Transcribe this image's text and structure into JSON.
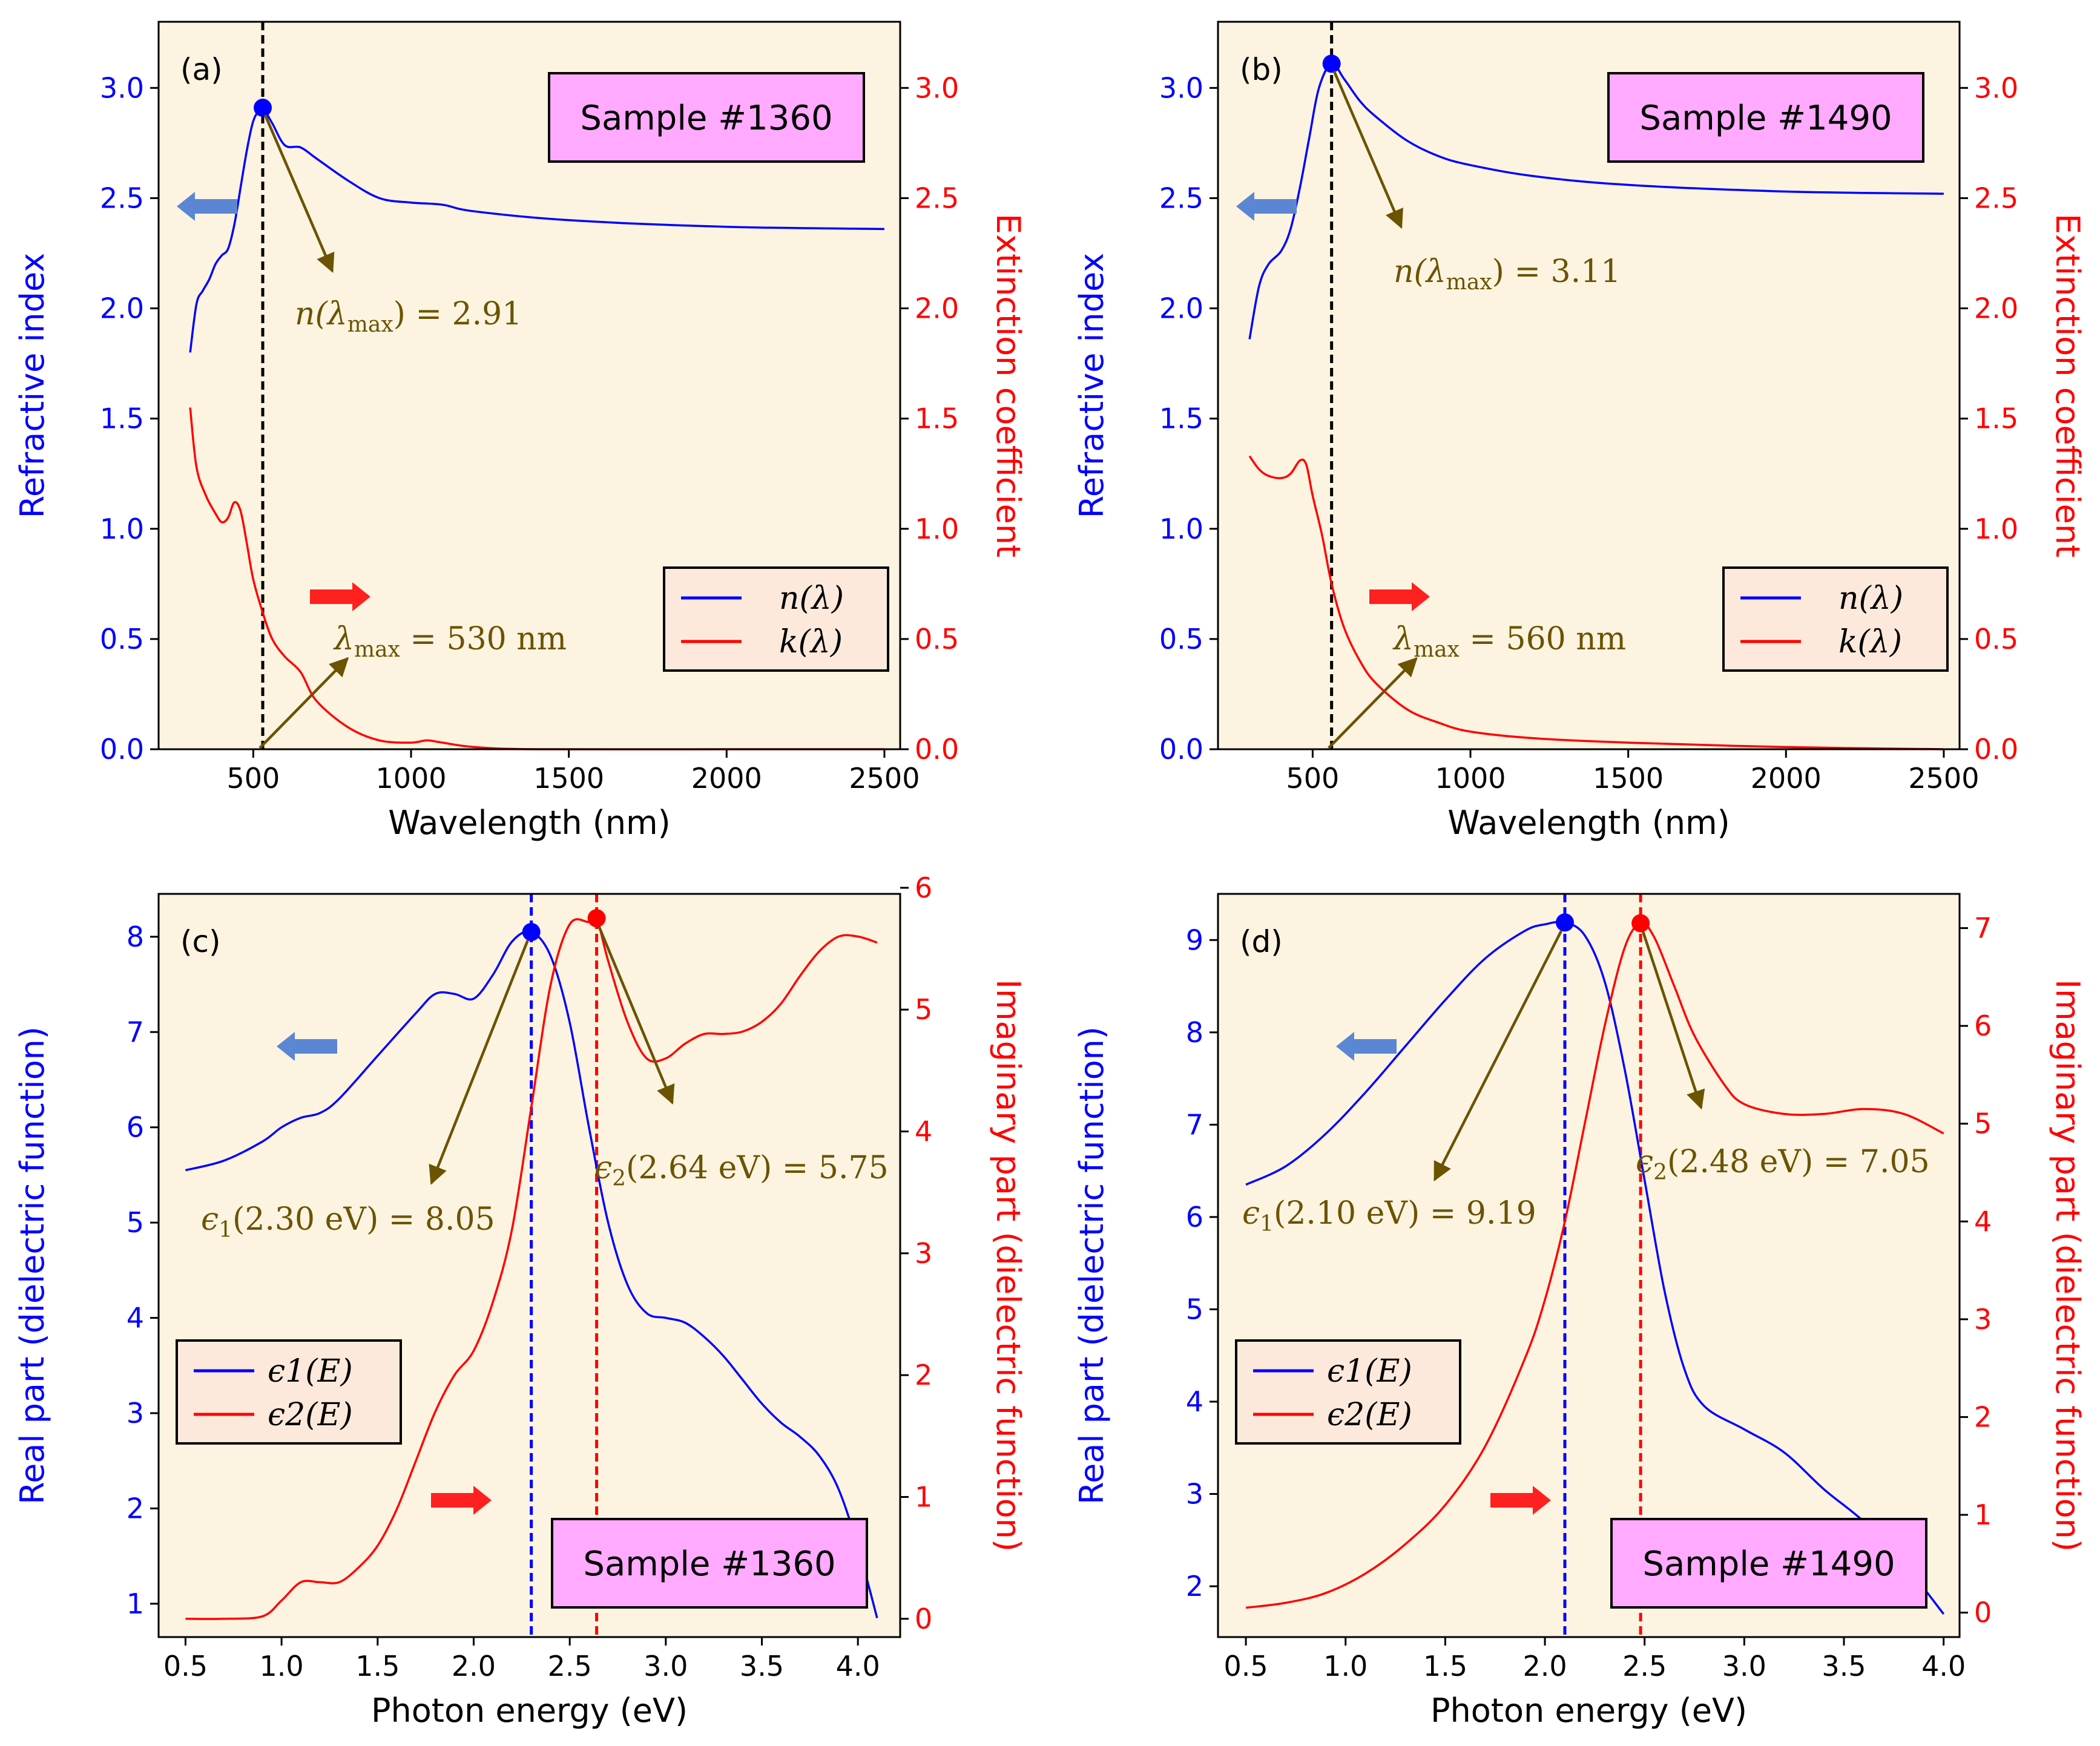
{
  "colors": {
    "panel_bg": "#fcf4e0",
    "blue": "#0000ff",
    "red": "#ff0000",
    "annotation": "#6b5300",
    "sample_box": "#ffaaff",
    "legend_bg": "#fde9dc",
    "arrow_blue": "#5b86d4",
    "arrow_red": "#ff2020"
  },
  "chart_data": [
    {
      "panel": "a",
      "label": "(a)",
      "type": "line",
      "sample": "Sample #1360",
      "xlabel": "Wavelength (nm)",
      "ylabel_left": "Refractive index",
      "ylabel_right": "Extinction coefficient",
      "xlim": [
        200,
        2550
      ],
      "ylim_left": [
        0,
        3.3
      ],
      "ylim_right": [
        0,
        3.3
      ],
      "xticks": [
        500,
        1000,
        1500,
        2000,
        2500
      ],
      "yticks_left": [
        0.0,
        0.5,
        1.0,
        1.5,
        2.0,
        2.5,
        3.0
      ],
      "yticks_right": [
        0.0,
        0.5,
        1.0,
        1.5,
        2.0,
        2.5,
        3.0
      ],
      "vline": {
        "x": 530,
        "color": "black"
      },
      "marker": {
        "x": 530,
        "y": 2.91,
        "axis": "left"
      },
      "legend": [
        "n(λ)",
        "k(λ)"
      ],
      "annot_peak": {
        "prefix": "n(λ",
        "sub": "max",
        "suffix": ") = 2.91"
      },
      "annot_lambda": {
        "prefix": "λ",
        "sub": "max",
        "suffix": " = 530 nm"
      },
      "series": [
        {
          "name": "n(λ)",
          "axis": "left",
          "x": [
            300,
            320,
            340,
            360,
            380,
            400,
            420,
            440,
            460,
            480,
            500,
            520,
            530,
            560,
            600,
            650,
            700,
            800,
            900,
            1000,
            1100,
            1200,
            1500,
            2000,
            2500
          ],
          "y": [
            1.8,
            2.02,
            2.08,
            2.13,
            2.2,
            2.24,
            2.27,
            2.38,
            2.55,
            2.72,
            2.85,
            2.9,
            2.91,
            2.84,
            2.74,
            2.73,
            2.68,
            2.58,
            2.5,
            2.48,
            2.47,
            2.44,
            2.4,
            2.37,
            2.36
          ]
        },
        {
          "name": "k(λ)",
          "axis": "right",
          "x": [
            300,
            320,
            350,
            380,
            400,
            420,
            440,
            460,
            480,
            500,
            530,
            560,
            600,
            650,
            700,
            800,
            900,
            1000,
            1050,
            1100,
            1200,
            1400,
            2000,
            2500
          ],
          "y": [
            1.55,
            1.28,
            1.15,
            1.07,
            1.03,
            1.05,
            1.12,
            1.08,
            0.93,
            0.77,
            0.62,
            0.5,
            0.42,
            0.35,
            0.22,
            0.1,
            0.04,
            0.03,
            0.04,
            0.03,
            0.01,
            0.0,
            0.0,
            0.0
          ]
        }
      ]
    },
    {
      "panel": "b",
      "label": "(b)",
      "type": "line",
      "sample": "Sample #1490",
      "xlabel": "Wavelength (nm)",
      "ylabel_left": "Refractive index",
      "ylabel_right": "Extinction coefficient",
      "xlim": [
        200,
        2550
      ],
      "ylim_left": [
        0,
        3.3
      ],
      "ylim_right": [
        0,
        3.3
      ],
      "xticks": [
        500,
        1000,
        1500,
        2000,
        2500
      ],
      "yticks_left": [
        0.0,
        0.5,
        1.0,
        1.5,
        2.0,
        2.5,
        3.0
      ],
      "yticks_right": [
        0.0,
        0.5,
        1.0,
        1.5,
        2.0,
        2.5,
        3.0
      ],
      "vline": {
        "x": 560,
        "color": "black"
      },
      "marker": {
        "x": 560,
        "y": 3.11,
        "axis": "left"
      },
      "legend": [
        "n(λ)",
        "k(λ)"
      ],
      "annot_peak": {
        "prefix": "n(λ",
        "sub": "max",
        "suffix": ") = 3.11"
      },
      "annot_lambda": {
        "prefix": "λ",
        "sub": "max",
        "suffix": " = 560 nm"
      },
      "series": [
        {
          "name": "n(λ)",
          "axis": "left",
          "x": [
            300,
            330,
            360,
            400,
            430,
            460,
            490,
            520,
            560,
            600,
            650,
            700,
            800,
            900,
            1000,
            1200,
            1500,
            2000,
            2500
          ],
          "y": [
            1.86,
            2.1,
            2.2,
            2.26,
            2.36,
            2.55,
            2.78,
            3.0,
            3.11,
            3.04,
            2.94,
            2.87,
            2.76,
            2.69,
            2.65,
            2.6,
            2.56,
            2.53,
            2.52
          ]
        },
        {
          "name": "k(λ)",
          "axis": "right",
          "x": [
            300,
            330,
            360,
            400,
            430,
            460,
            480,
            500,
            530,
            560,
            600,
            650,
            700,
            800,
            900,
            1000,
            1200,
            1500,
            2000,
            2500
          ],
          "y": [
            1.33,
            1.27,
            1.24,
            1.23,
            1.25,
            1.31,
            1.29,
            1.15,
            0.97,
            0.75,
            0.55,
            0.4,
            0.3,
            0.18,
            0.12,
            0.08,
            0.05,
            0.03,
            0.01,
            0.0
          ]
        }
      ]
    },
    {
      "panel": "c",
      "label": "(c)",
      "type": "line",
      "sample": "Sample #1360",
      "xlabel": "Photon energy (eV)",
      "ylabel_left": "Real part (dielectric function)",
      "ylabel_right": "Imaginary part (dielectric function)",
      "xlim": [
        0.36,
        4.22
      ],
      "ylim_left": [
        0.65,
        8.45
      ],
      "ylim_right": [
        -0.15,
        5.95
      ],
      "xticks": [
        0.5,
        1.0,
        1.5,
        2.0,
        2.5,
        3.0,
        3.5,
        4.0
      ],
      "yticks_left": [
        1,
        2,
        3,
        4,
        5,
        6,
        7,
        8
      ],
      "yticks_right": [
        0,
        1,
        2,
        3,
        4,
        5,
        6
      ],
      "vlines": [
        {
          "x": 2.3,
          "color": "blue"
        },
        {
          "x": 2.64,
          "color": "red"
        }
      ],
      "markers": [
        {
          "x": 2.3,
          "y": 8.05,
          "axis": "left"
        },
        {
          "x": 2.64,
          "y": 5.75,
          "axis": "right"
        }
      ],
      "legend": [
        "ϵ1(E)",
        "ϵ2(E)"
      ],
      "annot_e1": {
        "prefix": "ϵ",
        "sub": "1",
        "suffix": "(2.30 eV) = 8.05"
      },
      "annot_e2": {
        "prefix": "ϵ",
        "sub": "2",
        "suffix": "(2.64 eV) = 5.75"
      },
      "series": [
        {
          "name": "ϵ1(E)",
          "axis": "left",
          "x": [
            0.5,
            0.7,
            0.9,
            1.0,
            1.1,
            1.2,
            1.3,
            1.5,
            1.7,
            1.8,
            1.9,
            2.0,
            2.1,
            2.2,
            2.3,
            2.4,
            2.5,
            2.6,
            2.7,
            2.8,
            2.9,
            3.0,
            3.1,
            3.2,
            3.3,
            3.4,
            3.5,
            3.6,
            3.7,
            3.8,
            3.9,
            4.0,
            4.1
          ],
          "y": [
            5.55,
            5.65,
            5.85,
            6.0,
            6.1,
            6.15,
            6.3,
            6.75,
            7.2,
            7.4,
            7.4,
            7.35,
            7.6,
            7.95,
            8.05,
            7.8,
            7.1,
            6.0,
            5.0,
            4.35,
            4.05,
            4.0,
            3.95,
            3.8,
            3.6,
            3.35,
            3.1,
            2.9,
            2.75,
            2.55,
            2.2,
            1.6,
            0.85
          ]
        },
        {
          "name": "ϵ2(E)",
          "axis": "right",
          "x": [
            0.5,
            0.7,
            0.9,
            1.0,
            1.1,
            1.2,
            1.3,
            1.4,
            1.5,
            1.6,
            1.7,
            1.8,
            1.9,
            2.0,
            2.1,
            2.2,
            2.3,
            2.4,
            2.5,
            2.6,
            2.64,
            2.7,
            2.8,
            2.9,
            3.0,
            3.1,
            3.2,
            3.3,
            3.4,
            3.5,
            3.6,
            3.7,
            3.8,
            3.9,
            4.0,
            4.1
          ],
          "y": [
            0.0,
            0.0,
            0.02,
            0.15,
            0.3,
            0.3,
            0.3,
            0.42,
            0.6,
            0.9,
            1.3,
            1.7,
            2.0,
            2.2,
            2.6,
            3.2,
            4.2,
            5.2,
            5.7,
            5.72,
            5.75,
            5.4,
            4.9,
            4.6,
            4.6,
            4.72,
            4.8,
            4.8,
            4.82,
            4.9,
            5.05,
            5.28,
            5.48,
            5.6,
            5.6,
            5.55
          ]
        }
      ]
    },
    {
      "panel": "d",
      "label": "(d)",
      "type": "line",
      "sample": "Sample #1490",
      "xlabel": "Photon energy (eV)",
      "ylabel_left": "Real part (dielectric function)",
      "ylabel_right": "Imaginary part (dielectric function)",
      "xlim": [
        0.36,
        4.08
      ],
      "ylim_left": [
        1.45,
        9.5
      ],
      "ylim_right": [
        -0.25,
        7.35
      ],
      "xticks": [
        0.5,
        1.0,
        1.5,
        2.0,
        2.5,
        3.0,
        3.5,
        4.0
      ],
      "yticks_left": [
        2,
        3,
        4,
        5,
        6,
        7,
        8,
        9
      ],
      "yticks_right": [
        0,
        1,
        2,
        3,
        4,
        5,
        6,
        7
      ],
      "vlines": [
        {
          "x": 2.1,
          "color": "blue"
        },
        {
          "x": 2.48,
          "color": "red"
        }
      ],
      "markers": [
        {
          "x": 2.1,
          "y": 9.19,
          "axis": "left"
        },
        {
          "x": 2.48,
          "y": 7.05,
          "axis": "right"
        }
      ],
      "legend": [
        "ϵ1(E)",
        "ϵ2(E)"
      ],
      "annot_e1": {
        "prefix": "ϵ",
        "sub": "1",
        "suffix": "(2.10 eV) = 9.19"
      },
      "annot_e2": {
        "prefix": "ϵ",
        "sub": "2",
        "suffix": "(2.48 eV) = 7.05"
      },
      "series": [
        {
          "name": "ϵ1(E)",
          "axis": "left",
          "x": [
            0.5,
            0.7,
            0.9,
            1.1,
            1.3,
            1.5,
            1.7,
            1.9,
            2.0,
            2.1,
            2.2,
            2.3,
            2.4,
            2.5,
            2.6,
            2.7,
            2.8,
            3.0,
            3.2,
            3.4,
            3.6,
            3.8,
            4.0
          ],
          "y": [
            6.35,
            6.55,
            6.9,
            7.35,
            7.85,
            8.35,
            8.8,
            9.1,
            9.17,
            9.19,
            9.05,
            8.55,
            7.6,
            6.4,
            5.2,
            4.35,
            3.95,
            3.7,
            3.45,
            3.05,
            2.7,
            2.25,
            1.7
          ]
        },
        {
          "name": "ϵ2(E)",
          "axis": "right",
          "x": [
            0.5,
            0.7,
            0.9,
            1.1,
            1.3,
            1.5,
            1.7,
            1.9,
            2.0,
            2.1,
            2.2,
            2.3,
            2.4,
            2.48,
            2.55,
            2.65,
            2.75,
            2.9,
            3.0,
            3.2,
            3.4,
            3.6,
            3.8,
            4.0
          ],
          "y": [
            0.05,
            0.1,
            0.2,
            0.4,
            0.7,
            1.1,
            1.7,
            2.6,
            3.2,
            4.0,
            5.0,
            6.0,
            6.8,
            7.05,
            6.9,
            6.4,
            5.9,
            5.4,
            5.2,
            5.1,
            5.1,
            5.15,
            5.1,
            4.9
          ]
        }
      ]
    }
  ]
}
